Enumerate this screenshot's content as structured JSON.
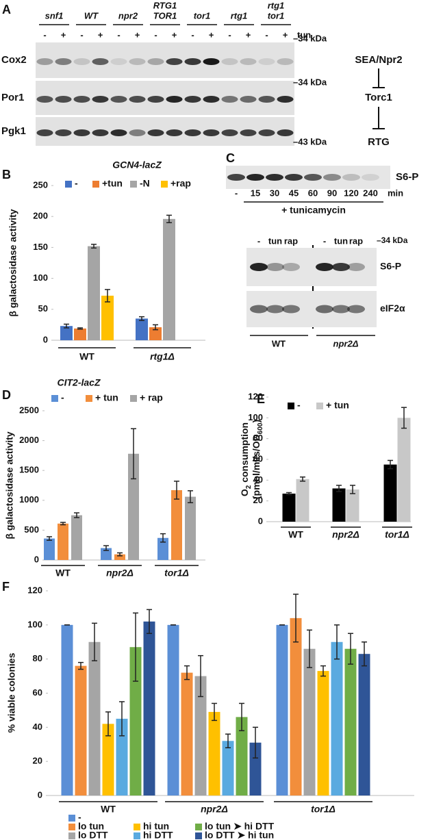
{
  "panel_labels": [
    "A",
    "B",
    "C",
    "D",
    "E",
    "F"
  ],
  "blot_a": {
    "strains": [
      [
        "snf1"
      ],
      [
        "WT"
      ],
      [
        "npr2"
      ],
      [
        "RTG1",
        "TOR1"
      ],
      [
        "tor1"
      ],
      [
        "rtg1"
      ],
      [
        "rtg1",
        "tor1"
      ]
    ],
    "signs": [
      "-",
      "+",
      "-",
      "+",
      "-",
      "+",
      "-",
      "+",
      "-",
      "+",
      "-",
      "+",
      "-",
      "+"
    ],
    "treatment": "tun",
    "rows": [
      "Cox2",
      "Por1",
      "Pgk1"
    ],
    "markers": [
      "–34 kDa",
      "–34 kDa",
      "–43 kDa"
    ]
  },
  "pathway": [
    "SEA/Npr2",
    "Torc1",
    "RTG"
  ],
  "blot_c": {
    "top_label": "S6-P",
    "times": [
      "-",
      "15",
      "30",
      "45",
      "60",
      "90",
      "120",
      "240"
    ],
    "unit": "min",
    "treatment": "+ tunicamycin",
    "lanes": [
      "-",
      "tun",
      "rap",
      "-",
      "tun",
      "rap"
    ],
    "marker": "–34 kDa",
    "rows": [
      "S6-P",
      "eIF2α"
    ],
    "strains": [
      "WT",
      "npr2Δ"
    ]
  },
  "chart_data": [
    {
      "type": "bar",
      "title": "GCN4-lacZ",
      "ylabel": "β galactosidase activity",
      "categories": [
        "WT",
        "rtg1Δ"
      ],
      "ylim": [
        0,
        250
      ],
      "yticks": [
        0,
        50,
        100,
        150,
        200,
        250
      ],
      "series": [
        {
          "name": "-",
          "color": "#4472c4",
          "values": [
            23,
            35
          ],
          "errors": [
            3,
            3
          ]
        },
        {
          "name": "+tun",
          "color": "#ed7d31",
          "values": [
            19,
            21
          ],
          "errors": [
            1,
            4
          ]
        },
        {
          "name": "-N",
          "color": "#a5a5a5",
          "values": [
            152,
            196
          ],
          "errors": [
            3,
            6
          ]
        },
        {
          "name": "+rap",
          "color": "#ffc000",
          "values": [
            72,
            null
          ],
          "errors": [
            10,
            null
          ]
        }
      ]
    },
    {
      "type": "bar",
      "title": "CIT2-lacZ",
      "ylabel": "β galactosidase activity",
      "categories": [
        "WT",
        "npr2Δ",
        "tor1Δ"
      ],
      "ylim": [
        0,
        2500
      ],
      "yticks": [
        0,
        500,
        1000,
        1500,
        2000,
        2500
      ],
      "series": [
        {
          "name": "-",
          "color": "#5b8fd6",
          "values": [
            360,
            200,
            370
          ],
          "errors": [
            30,
            40,
            70
          ]
        },
        {
          "name": "+ tun",
          "color": "#f28e3c",
          "values": [
            610,
            95,
            1170
          ],
          "errors": [
            20,
            25,
            150
          ]
        },
        {
          "name": "+ rap",
          "color": "#a5a5a5",
          "values": [
            750,
            1780,
            1060
          ],
          "errors": [
            40,
            420,
            100
          ]
        }
      ]
    },
    {
      "type": "bar",
      "ylabel": [
        [
          "O",
          "2",
          " consumption"
        ],
        [
          "(pmol/ml/s/OD",
          "600",
          ")"
        ]
      ],
      "categories": [
        "WT",
        "npr2Δ",
        "tor1Δ"
      ],
      "ylim": [
        0,
        120
      ],
      "yticks": [
        0,
        20,
        40,
        60,
        80,
        100,
        120
      ],
      "series": [
        {
          "name": "-",
          "color": "#000000",
          "values": [
            27,
            32,
            55
          ],
          "errors": [
            1,
            3,
            4
          ]
        },
        {
          "name": "+ tun",
          "color": "#c8c8c8",
          "values": [
            41,
            31,
            100
          ],
          "errors": [
            2,
            4,
            10
          ]
        }
      ]
    },
    {
      "type": "bar",
      "ylabel": "% viable colonies",
      "categories": [
        "WT",
        "npr2Δ",
        "tor1Δ"
      ],
      "ylim": [
        0,
        120
      ],
      "yticks": [
        0,
        20,
        40,
        60,
        80,
        100,
        120
      ],
      "series": [
        {
          "name": "-",
          "color": "#5b8fd6",
          "values": [
            100,
            100,
            100
          ],
          "errors": [
            0,
            0,
            0
          ]
        },
        {
          "name": "lo tun",
          "color": "#f28e3c",
          "values": [
            76,
            72,
            104
          ],
          "errors": [
            2,
            4,
            14
          ]
        },
        {
          "name": "lo DTT",
          "color": "#a5a5a5",
          "values": [
            90,
            70,
            86
          ],
          "errors": [
            11,
            12,
            11
          ]
        },
        {
          "name": "hi tun",
          "color": "#ffc000",
          "values": [
            42,
            49,
            73
          ],
          "errors": [
            7,
            5,
            3
          ]
        },
        {
          "name": "hi DTT",
          "color": "#5aaae0",
          "values": [
            45,
            32,
            90
          ],
          "errors": [
            10,
            4,
            10
          ]
        },
        {
          "name": "lo tun ➤ hi DTT",
          "color": "#70ad47",
          "values": [
            87,
            46,
            86
          ],
          "errors": [
            20,
            8,
            9
          ]
        },
        {
          "name": "lo DTT ➤ hi tun",
          "color": "#2f5597",
          "values": [
            102,
            31,
            83
          ],
          "errors": [
            7,
            9,
            7
          ]
        }
      ]
    }
  ]
}
